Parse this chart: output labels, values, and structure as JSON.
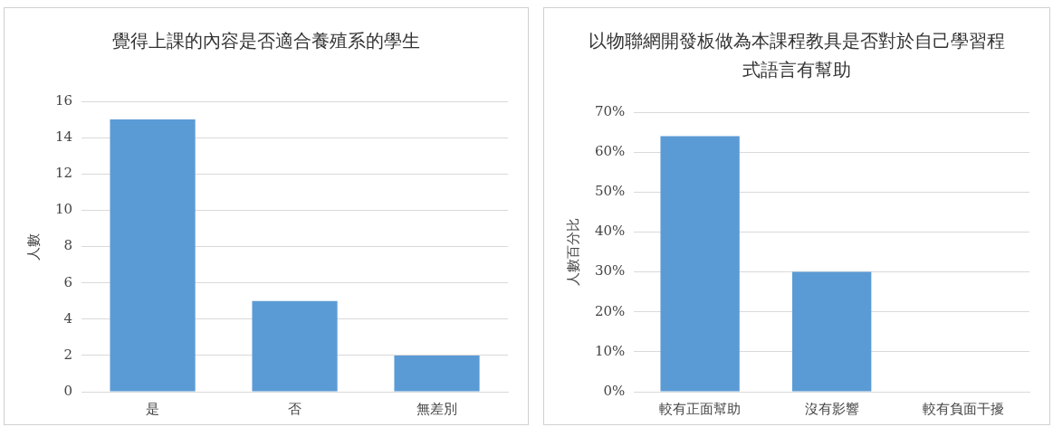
{
  "chart_data": [
    {
      "type": "bar",
      "title": "覺得上課的內容是否適合養殖系的學生",
      "ylabel": "人數",
      "categories": [
        "是",
        "否",
        "無差別"
      ],
      "values": [
        15,
        5,
        2
      ],
      "color": "#5b9bd5",
      "ylim": [
        0,
        16
      ],
      "yticks": [
        0,
        2,
        4,
        6,
        8,
        10,
        12,
        14,
        16
      ],
      "grid": "y",
      "legend": false
    },
    {
      "type": "bar",
      "title": "以物聯網開發板做為本課程教具是否對於自己學習程式語言有幫助",
      "ylabel": "人數百分比",
      "categories": [
        "較有正面幫助",
        "沒有影響",
        "較有負面干擾"
      ],
      "values": [
        64,
        30,
        0
      ],
      "color": "#5b9bd5",
      "ylim": [
        0,
        70
      ],
      "yticks": [
        {
          "value": 0,
          "label": "0%"
        },
        {
          "value": 10,
          "label": "10%"
        },
        {
          "value": 20,
          "label": "20%"
        },
        {
          "value": 30,
          "label": "30%"
        },
        {
          "value": 40,
          "label": "40%"
        },
        {
          "value": 50,
          "label": "50%"
        },
        {
          "value": 60,
          "label": "60%"
        },
        {
          "value": 70,
          "label": "70%"
        }
      ],
      "grid": "y",
      "legend": false
    }
  ]
}
